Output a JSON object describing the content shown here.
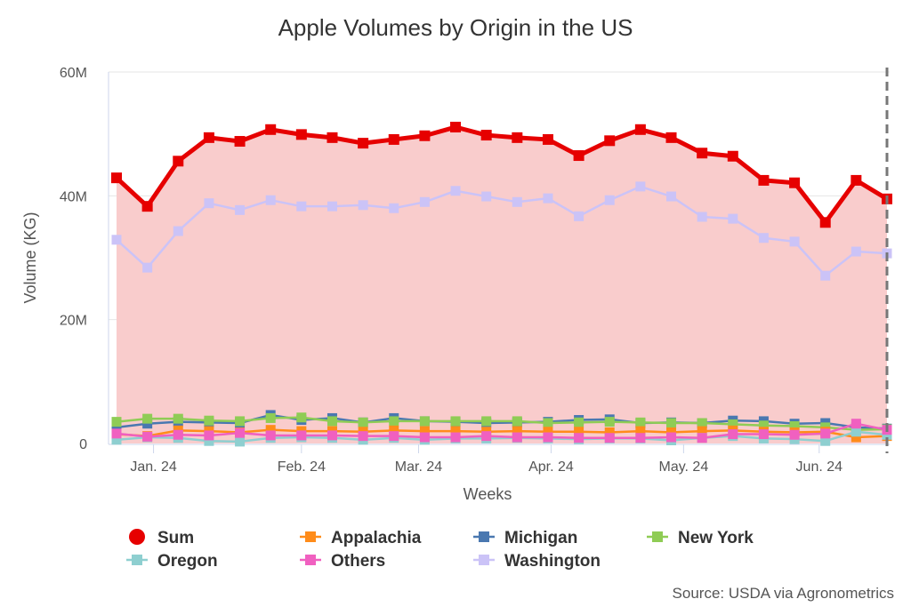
{
  "chart_data": {
    "type": "line",
    "title": "Apple Volumes by Origin in the US",
    "xlabel": "Weeks",
    "ylabel": "Volume (KG)",
    "ylim": [
      0,
      60000000
    ],
    "yticks": [
      {
        "v": 0,
        "label": "0"
      },
      {
        "v": 20000000,
        "label": "20M"
      },
      {
        "v": 40000000,
        "label": "40M"
      },
      {
        "v": 60000000,
        "label": "60M"
      }
    ],
    "xticks": [
      {
        "week": 1.2,
        "label": "Jan. 24"
      },
      {
        "week": 6.0,
        "label": "Feb. 24"
      },
      {
        "week": 9.8,
        "label": "Mar. 24"
      },
      {
        "week": 14.1,
        "label": "Apr. 24"
      },
      {
        "week": 18.4,
        "label": "May. 24"
      },
      {
        "week": 22.8,
        "label": "Jun. 24"
      }
    ],
    "grid": true,
    "legend": "bottom",
    "source": "Source: USDA via Agronometrics",
    "series": [
      {
        "name": "Sum",
        "color": "#e60000",
        "values": [
          42.9,
          38.3,
          45.6,
          49.4,
          48.8,
          50.7,
          49.9,
          49.4,
          48.5,
          49.1,
          49.7,
          51.1,
          49.8,
          49.4,
          49.1,
          46.5,
          48.9,
          50.7,
          49.4,
          46.9,
          46.4,
          42.5,
          42.1,
          35.7,
          42.5,
          39.5
        ]
      },
      {
        "name": "Appalachia",
        "color": "#ff8c1a",
        "values": [
          1.5,
          1.2,
          2.1,
          2.0,
          1.8,
          2.2,
          2.0,
          2.0,
          1.9,
          2.1,
          2.0,
          2.0,
          1.9,
          2.0,
          1.9,
          1.9,
          1.8,
          2.0,
          1.8,
          2.0,
          2.1,
          1.9,
          1.8,
          1.9,
          1.0,
          1.2
        ]
      },
      {
        "name": "Michigan",
        "color": "#4a78b0",
        "values": [
          2.6,
          3.2,
          3.5,
          3.4,
          3.3,
          4.6,
          3.8,
          4.1,
          3.4,
          4.1,
          3.6,
          3.5,
          3.3,
          3.4,
          3.5,
          3.8,
          3.9,
          3.3,
          3.4,
          3.3,
          3.7,
          3.6,
          3.2,
          3.3,
          2.6,
          2.4
        ]
      },
      {
        "name": "New York",
        "color": "#8fcc55",
        "values": [
          3.5,
          4.0,
          4.0,
          3.7,
          3.6,
          4.1,
          4.2,
          3.6,
          3.4,
          3.6,
          3.6,
          3.6,
          3.6,
          3.6,
          3.3,
          3.4,
          3.5,
          3.4,
          3.3,
          3.3,
          3.1,
          2.9,
          2.8,
          2.6,
          2.2,
          2.3
        ]
      },
      {
        "name": "Oregon",
        "color": "#8ecfd0",
        "values": [
          0.6,
          1.0,
          0.9,
          0.4,
          0.3,
          0.9,
          1.0,
          0.9,
          0.6,
          0.9,
          0.6,
          0.8,
          0.8,
          0.9,
          0.8,
          0.7,
          0.8,
          0.8,
          0.5,
          0.9,
          1.2,
          0.8,
          0.7,
          0.4,
          1.9,
          1.4
        ]
      },
      {
        "name": "Others",
        "color": "#f060c0",
        "values": [
          1.6,
          1.1,
          1.4,
          1.3,
          1.7,
          1.3,
          1.3,
          1.3,
          1.2,
          1.2,
          1.0,
          1.0,
          1.2,
          1.0,
          1.0,
          0.9,
          0.9,
          0.9,
          1.0,
          0.9,
          1.5,
          1.5,
          1.4,
          1.6,
          3.2,
          2.2
        ]
      },
      {
        "name": "Washington",
        "color": "#cbc3f7",
        "values": [
          32.9,
          28.4,
          34.3,
          38.8,
          37.7,
          39.3,
          38.3,
          38.3,
          38.5,
          38.0,
          39.0,
          40.8,
          39.9,
          39.0,
          39.6,
          36.7,
          39.3,
          41.5,
          39.9,
          36.6,
          36.3,
          33.2,
          32.6,
          27.1,
          31.0,
          30.7
        ]
      }
    ],
    "units": "M"
  }
}
